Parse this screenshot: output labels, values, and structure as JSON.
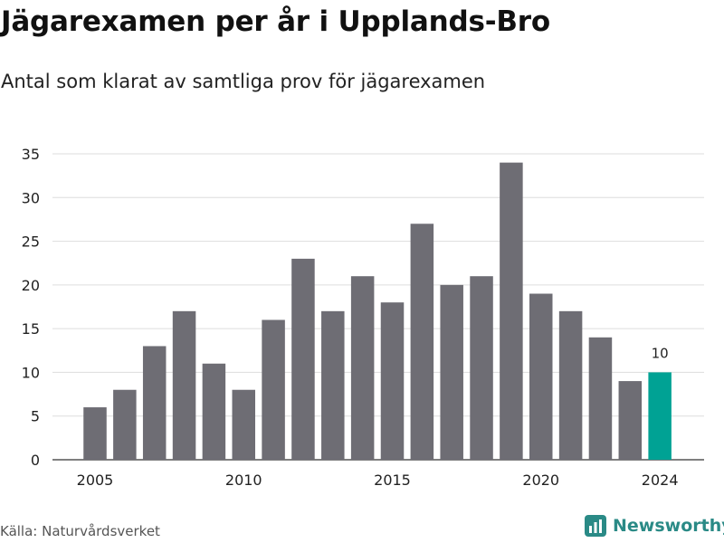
{
  "title": "Jägarexamen per år i Upplands-Bro",
  "subtitle": "Antal som klarat av samtliga prov för jägarexamen",
  "source": "Källa: Naturvårdsverket",
  "brand": "Newsworthy",
  "colors": {
    "bar": "#6e6d74",
    "highlight": "#00a294",
    "grid": "#dddddd",
    "brand": "#2a8a86"
  },
  "chart_data": {
    "type": "bar",
    "categories": [
      "2005",
      "2006",
      "2007",
      "2008",
      "2009",
      "2010",
      "2011",
      "2012",
      "2013",
      "2014",
      "2015",
      "2016",
      "2017",
      "2018",
      "2019",
      "2020",
      "2021",
      "2022",
      "2023",
      "2024"
    ],
    "values": [
      6,
      8,
      13,
      17,
      11,
      8,
      16,
      23,
      17,
      21,
      18,
      27,
      20,
      21,
      34,
      19,
      17,
      14,
      9,
      10
    ],
    "highlight_index": 19,
    "highlight_label": "10",
    "x_tick_labels": [
      "2005",
      "2010",
      "2015",
      "2020",
      "2024"
    ],
    "y_ticks": [
      0,
      5,
      10,
      15,
      20,
      25,
      30,
      35
    ],
    "ylim": [
      0,
      35
    ],
    "xlabel": "",
    "ylabel": "",
    "grid": true,
    "legend": false
  }
}
